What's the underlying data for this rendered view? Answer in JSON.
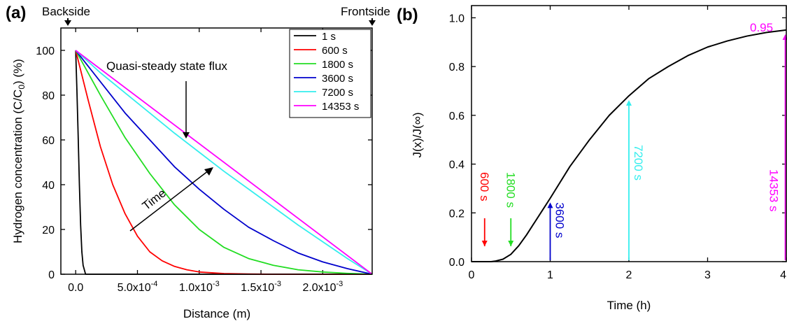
{
  "panel_a": {
    "panel_label": "(a)",
    "top_labels": {
      "left": "Backside",
      "right": "Frontside"
    },
    "annotations": {
      "flux": "Quasi-steady state flux",
      "time": "Time"
    },
    "ylabel_parts": [
      "Hydrogen concentration (C/C",
      "0",
      ") (%)"
    ]
  },
  "panel_b": {
    "panel_label": "(b)",
    "ylabel": "J(x)/J(∞)",
    "xlabel": "Time (h)",
    "markers": [
      {
        "label": "600 s",
        "x": 0.1667,
        "color": "#ff0000"
      },
      {
        "label": "1800 s",
        "x": 0.5,
        "color": "#22dd22"
      },
      {
        "label": "3600 s",
        "x": 1.0,
        "color": "#0000cc"
      },
      {
        "label": "7200 s",
        "x": 2.0,
        "color": "#33eeee"
      },
      {
        "label": "14353 s",
        "x": 3.987,
        "color": "#ff00ff"
      }
    ],
    "end_value_label": "0.95"
  },
  "colors": {
    "axis": "#000000",
    "1 s": "#000000",
    "600 s": "#ff0000",
    "1800 s": "#22dd22",
    "3600 s": "#0000cc",
    "7200 s": "#33eeee",
    "14353 s": "#ff00ff"
  },
  "chart_data": [
    {
      "type": "line",
      "xlabel": "Distance (m)",
      "ylabel": "Hydrogen concentration (C/C0) (%)",
      "xlim": [
        -0.00012,
        0.0024
      ],
      "ylim": [
        0,
        110
      ],
      "xticks": [
        0,
        0.0005,
        0.001,
        0.0015,
        0.002
      ],
      "xtick_labels": [
        "0.0",
        "5.0x10-4",
        "1.0x10-3",
        "1.5x10-3",
        "2.0x10-3"
      ],
      "yticks": [
        0,
        20,
        40,
        60,
        80,
        100
      ],
      "ytick_labels": [
        "0",
        "20",
        "40",
        "60",
        "80",
        "100"
      ],
      "legend_position": "top-right",
      "series": [
        {
          "name": "1 s",
          "color": "#000000",
          "x": [
            0,
            1e-05,
            2e-05,
            3e-05,
            4e-05,
            5e-05,
            6e-05,
            8e-05,
            0.0024
          ],
          "y": [
            100,
            82,
            62,
            40,
            22,
            10,
            4,
            0,
            0
          ]
        },
        {
          "name": "600 s",
          "color": "#ff0000",
          "x": [
            0,
            0.0001,
            0.0002,
            0.0003,
            0.0004,
            0.0005,
            0.0006,
            0.0007,
            0.0008,
            0.0009,
            0.001,
            0.0012,
            0.0014,
            0.0016,
            0.0024
          ],
          "y": [
            100,
            78,
            57,
            40,
            27,
            17,
            10,
            6,
            3.5,
            2,
            1,
            0.3,
            0.1,
            0,
            0
          ]
        },
        {
          "name": "1800 s",
          "color": "#22dd22",
          "x": [
            0,
            0.0002,
            0.0004,
            0.0006,
            0.0008,
            0.001,
            0.0012,
            0.0014,
            0.0016,
            0.0018,
            0.002,
            0.0022,
            0.0024
          ],
          "y": [
            100,
            80,
            61,
            45,
            31,
            20,
            12,
            7,
            4,
            2,
            1,
            0.4,
            0
          ]
        },
        {
          "name": "3600 s",
          "color": "#0000cc",
          "x": [
            0,
            0.0002,
            0.0004,
            0.0006,
            0.0008,
            0.001,
            0.0012,
            0.0014,
            0.0016,
            0.0018,
            0.002,
            0.0022,
            0.0024
          ],
          "y": [
            100,
            86,
            72,
            60,
            48,
            38,
            29,
            21,
            15,
            9.5,
            5.5,
            2.5,
            0
          ]
        },
        {
          "name": "7200 s",
          "color": "#33eeee",
          "x": [
            0,
            0.0002,
            0.0004,
            0.0006,
            0.0008,
            0.001,
            0.0012,
            0.0014,
            0.0016,
            0.0018,
            0.002,
            0.0022,
            0.0024
          ],
          "y": [
            100,
            90,
            81,
            72,
            63,
            54.5,
            46,
            38,
            30,
            22,
            14.5,
            7,
            0
          ]
        },
        {
          "name": "14353 s",
          "color": "#ff00ff",
          "x": [
            0,
            0.0024
          ],
          "y": [
            100,
            0
          ]
        }
      ]
    },
    {
      "type": "line",
      "xlabel": "Time (h)",
      "ylabel": "J(x)/J(∞)",
      "xlim": [
        0,
        4
      ],
      "ylim": [
        0,
        1.05
      ],
      "xticks": [
        0,
        1,
        2,
        3,
        4
      ],
      "xtick_labels": [
        "0",
        "1",
        "2",
        "3",
        "4"
      ],
      "yticks": [
        0,
        0.2,
        0.4,
        0.6,
        0.8,
        1.0
      ],
      "ytick_labels": [
        "0.0",
        "0.2",
        "0.4",
        "0.6",
        "0.8",
        "1.0"
      ],
      "series": [
        {
          "color": "#000000",
          "x": [
            0.25,
            0.3,
            0.4,
            0.5,
            0.6,
            0.7,
            0.8,
            0.9,
            1.0,
            1.25,
            1.5,
            1.75,
            2.0,
            2.25,
            2.5,
            2.75,
            3.0,
            3.25,
            3.5,
            3.75,
            4.0
          ],
          "y": [
            0,
            0.002,
            0.01,
            0.03,
            0.065,
            0.11,
            0.16,
            0.21,
            0.26,
            0.39,
            0.5,
            0.6,
            0.68,
            0.75,
            0.8,
            0.845,
            0.88,
            0.905,
            0.925,
            0.94,
            0.95
          ]
        }
      ]
    }
  ]
}
